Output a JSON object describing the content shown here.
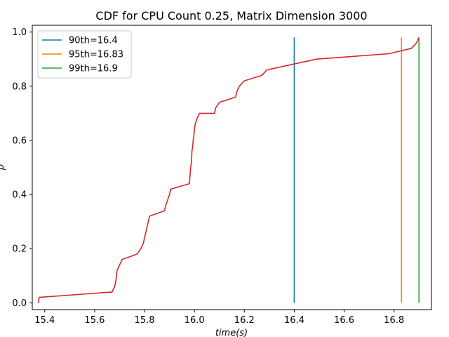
{
  "chart_data": {
    "type": "line",
    "title": "CDF for CPU Count 0.25, Matrix Dimension 3000",
    "xlabel": "time(s)",
    "ylabel": "p",
    "xlim": [
      15.35,
      16.95
    ],
    "ylim": [
      -0.025,
      1.025
    ],
    "xticks": [
      "15.4",
      "15.6",
      "15.8",
      "16.0",
      "16.2",
      "16.4",
      "16.6",
      "16.8"
    ],
    "yticks": [
      "0.0",
      "0.2",
      "0.4",
      "0.6",
      "0.8",
      "1.0"
    ],
    "grid": false,
    "legend_position": "top-left",
    "series": [
      {
        "name": "90th=16.4",
        "color": "#1f77b4",
        "kind": "vline",
        "x": 16.4,
        "y": [
          0.0,
          0.98
        ]
      },
      {
        "name": "95th=16.83",
        "color": "#ff7f0e",
        "kind": "vline",
        "x": 16.83,
        "y": [
          0.0,
          0.98
        ]
      },
      {
        "name": "99th=16.9",
        "color": "#2ca02c",
        "kind": "vline",
        "x": 16.9,
        "y": [
          0.0,
          0.98
        ]
      },
      {
        "color": "#d62728",
        "kind": "line",
        "x": [
          15.375,
          15.377,
          15.67,
          15.68,
          15.685,
          15.69,
          15.7,
          15.71,
          15.77,
          15.785,
          15.795,
          15.8,
          15.805,
          15.81,
          15.82,
          15.88,
          15.885,
          15.9,
          15.905,
          15.98,
          15.983,
          15.985,
          15.988,
          15.99,
          15.993,
          15.995,
          15.998,
          16.0,
          16.003,
          16.01,
          16.02,
          16.08,
          16.085,
          16.1,
          16.165,
          16.17,
          16.18,
          16.2,
          16.27,
          16.29,
          16.49,
          16.78,
          16.87,
          16.89,
          16.9
        ],
        "y": [
          0.0,
          0.02,
          0.04,
          0.06,
          0.08,
          0.12,
          0.14,
          0.16,
          0.18,
          0.2,
          0.22,
          0.24,
          0.26,
          0.28,
          0.32,
          0.34,
          0.36,
          0.4,
          0.42,
          0.44,
          0.48,
          0.5,
          0.52,
          0.56,
          0.58,
          0.6,
          0.62,
          0.64,
          0.66,
          0.68,
          0.7,
          0.7,
          0.72,
          0.74,
          0.76,
          0.78,
          0.8,
          0.82,
          0.84,
          0.86,
          0.9,
          0.92,
          0.94,
          0.96,
          0.98
        ]
      }
    ]
  }
}
